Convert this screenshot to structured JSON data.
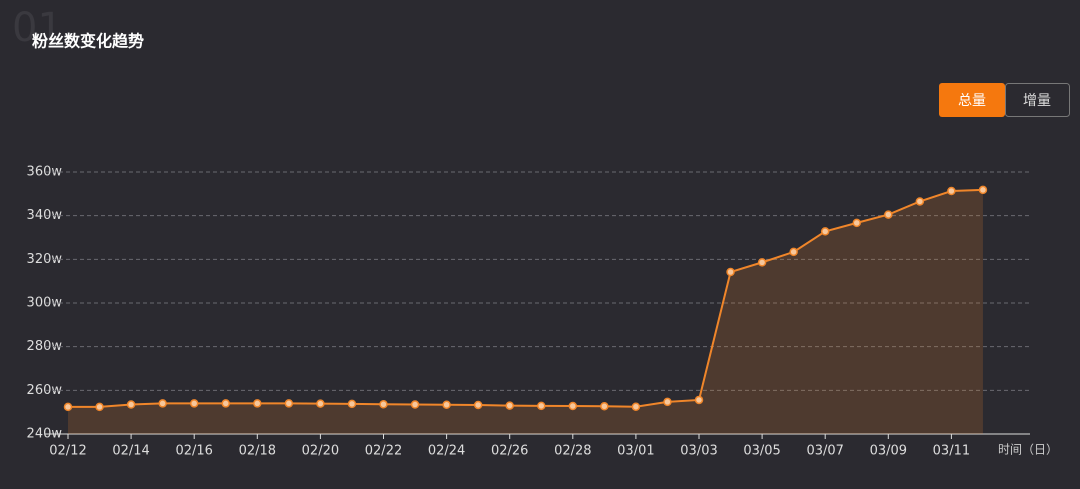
{
  "chart_data": {
    "type": "line",
    "badge": "01",
    "title": "粉丝数变化趋势",
    "toggles": [
      "总量",
      "增量"
    ],
    "x_label": "时间（日）",
    "categories": [
      "02/12",
      null,
      "02/14",
      null,
      "02/16",
      null,
      "02/18",
      null,
      "02/20",
      null,
      "02/22",
      null,
      "02/24",
      null,
      "02/26",
      null,
      "02/28",
      null,
      "03/01",
      null,
      "03/03",
      null,
      "03/05",
      null,
      "03/07",
      null,
      "03/09",
      null,
      "03/11",
      null
    ],
    "values": [
      252.4,
      252.4,
      253.5,
      254,
      254,
      254,
      254,
      254,
      253.9,
      253.8,
      253.6,
      253.5,
      253.4,
      253.3,
      253,
      252.9,
      252.8,
      252.7,
      252.5,
      254.7,
      255.6,
      314.2,
      318.6,
      323.4,
      332.8,
      336.7,
      340.5,
      346.5,
      351.3,
      351.8
    ],
    "color": "#f0862a",
    "ylim": [
      240,
      360
    ],
    "yticks": [
      {
        "value": 240,
        "label": "240w"
      },
      {
        "value": 260,
        "label": "260w"
      },
      {
        "value": 280,
        "label": "280w"
      },
      {
        "value": 300,
        "label": "300w"
      },
      {
        "value": 320,
        "label": "320w"
      },
      {
        "value": 340,
        "label": "340w"
      },
      {
        "value": 360,
        "label": "360w"
      }
    ],
    "grid": true
  }
}
